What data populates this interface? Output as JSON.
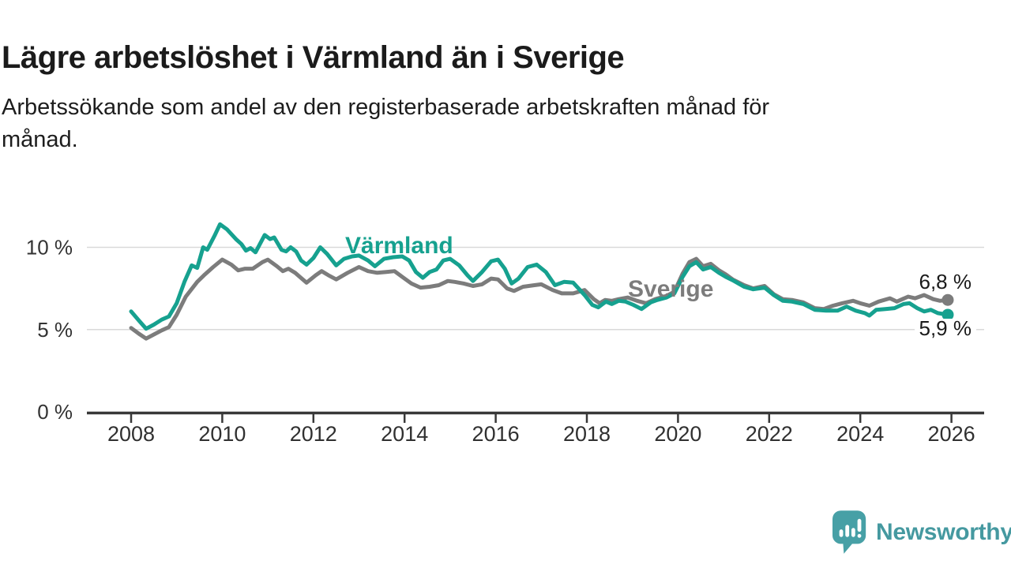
{
  "header": {
    "title": "Lägre arbetslöshet i Värmland än i Sverige",
    "subtitle_lines": [
      "Arbetssökande som andel av den registerbaserade arbetskraften månad för",
      "månad."
    ]
  },
  "chart_data": {
    "type": "line",
    "title": "Lägre arbetslöshet i Värmland än i Sverige",
    "subtitle": "Arbetssökande som andel av den registerbaserade arbetskraften månad för månad.",
    "unit": "%",
    "xlim": [
      2007.8,
      2026.75
    ],
    "ylim": [
      0,
      11.5
    ],
    "grid": "horizontal",
    "legend_position": "inline-labels",
    "x_ticks": [
      2008,
      2010,
      2012,
      2014,
      2016,
      2018,
      2020,
      2022,
      2024,
      2026
    ],
    "y_ticks": [
      {
        "label": "0 %",
        "value": 0
      },
      {
        "label": "5 %",
        "value": 5
      },
      {
        "label": "10 %",
        "value": 10
      }
    ],
    "gridline_values": [
      5,
      10
    ],
    "series": [
      {
        "name": "Värmland",
        "color": "#16a18f",
        "end_label": "5,9 %",
        "end_value": 5.9,
        "points": [
          [
            2008.0,
            6.1
          ],
          [
            2008.17,
            5.55
          ],
          [
            2008.33,
            5.05
          ],
          [
            2008.5,
            5.3
          ],
          [
            2008.67,
            5.6
          ],
          [
            2008.83,
            5.8
          ],
          [
            2009.0,
            6.6
          ],
          [
            2009.17,
            7.9
          ],
          [
            2009.33,
            8.9
          ],
          [
            2009.45,
            8.75
          ],
          [
            2009.58,
            10.0
          ],
          [
            2009.67,
            9.85
          ],
          [
            2009.83,
            10.7
          ],
          [
            2009.95,
            11.4
          ],
          [
            2010.1,
            11.1
          ],
          [
            2010.3,
            10.5
          ],
          [
            2010.42,
            10.2
          ],
          [
            2010.52,
            9.8
          ],
          [
            2010.62,
            9.95
          ],
          [
            2010.73,
            9.7
          ],
          [
            2010.93,
            10.75
          ],
          [
            2011.05,
            10.5
          ],
          [
            2011.14,
            10.6
          ],
          [
            2011.3,
            9.85
          ],
          [
            2011.4,
            9.75
          ],
          [
            2011.5,
            10.0
          ],
          [
            2011.62,
            9.75
          ],
          [
            2011.73,
            9.2
          ],
          [
            2011.85,
            8.95
          ],
          [
            2012.0,
            9.35
          ],
          [
            2012.15,
            10.0
          ],
          [
            2012.3,
            9.6
          ],
          [
            2012.5,
            8.9
          ],
          [
            2012.67,
            9.3
          ],
          [
            2012.85,
            9.45
          ],
          [
            2013.0,
            9.5
          ],
          [
            2013.2,
            9.2
          ],
          [
            2013.35,
            8.85
          ],
          [
            2013.55,
            9.3
          ],
          [
            2013.75,
            9.4
          ],
          [
            2013.95,
            9.45
          ],
          [
            2014.1,
            9.2
          ],
          [
            2014.25,
            8.5
          ],
          [
            2014.4,
            8.15
          ],
          [
            2014.55,
            8.5
          ],
          [
            2014.7,
            8.65
          ],
          [
            2014.85,
            9.2
          ],
          [
            2015.0,
            9.3
          ],
          [
            2015.2,
            8.9
          ],
          [
            2015.38,
            8.3
          ],
          [
            2015.5,
            7.95
          ],
          [
            2015.7,
            8.5
          ],
          [
            2015.9,
            9.15
          ],
          [
            2016.05,
            9.25
          ],
          [
            2016.2,
            8.7
          ],
          [
            2016.35,
            7.8
          ],
          [
            2016.5,
            8.1
          ],
          [
            2016.7,
            8.8
          ],
          [
            2016.9,
            8.95
          ],
          [
            2017.1,
            8.5
          ],
          [
            2017.3,
            7.7
          ],
          [
            2017.5,
            7.9
          ],
          [
            2017.7,
            7.85
          ],
          [
            2017.95,
            7.1
          ],
          [
            2018.12,
            6.5
          ],
          [
            2018.25,
            6.35
          ],
          [
            2018.42,
            6.7
          ],
          [
            2018.55,
            6.55
          ],
          [
            2018.7,
            6.75
          ],
          [
            2018.85,
            6.7
          ],
          [
            2019.02,
            6.5
          ],
          [
            2019.2,
            6.25
          ],
          [
            2019.4,
            6.65
          ],
          [
            2019.55,
            6.8
          ],
          [
            2019.75,
            6.95
          ],
          [
            2019.92,
            7.2
          ],
          [
            2020.1,
            8.2
          ],
          [
            2020.25,
            8.85
          ],
          [
            2020.4,
            9.1
          ],
          [
            2020.55,
            8.65
          ],
          [
            2020.72,
            8.8
          ],
          [
            2020.9,
            8.45
          ],
          [
            2021.05,
            8.2
          ],
          [
            2021.2,
            8.0
          ],
          [
            2021.45,
            7.6
          ],
          [
            2021.65,
            7.45
          ],
          [
            2021.9,
            7.55
          ],
          [
            2022.1,
            7.1
          ],
          [
            2022.3,
            6.75
          ],
          [
            2022.5,
            6.7
          ],
          [
            2022.75,
            6.55
          ],
          [
            2023.0,
            6.2
          ],
          [
            2023.25,
            6.15
          ],
          [
            2023.5,
            6.15
          ],
          [
            2023.7,
            6.4
          ],
          [
            2023.9,
            6.15
          ],
          [
            2024.1,
            6.0
          ],
          [
            2024.2,
            5.85
          ],
          [
            2024.35,
            6.2
          ],
          [
            2024.55,
            6.25
          ],
          [
            2024.75,
            6.3
          ],
          [
            2024.95,
            6.55
          ],
          [
            2025.08,
            6.6
          ],
          [
            2025.25,
            6.3
          ],
          [
            2025.4,
            6.1
          ],
          [
            2025.55,
            6.2
          ],
          [
            2025.7,
            6.0
          ],
          [
            2025.92,
            5.9
          ]
        ]
      },
      {
        "name": "Sverige",
        "color": "#7c7c7c",
        "end_label": "6,8 %",
        "end_value": 6.8,
        "points": [
          [
            2008.0,
            5.1
          ],
          [
            2008.17,
            4.75
          ],
          [
            2008.33,
            4.45
          ],
          [
            2008.5,
            4.7
          ],
          [
            2008.67,
            4.95
          ],
          [
            2008.83,
            5.15
          ],
          [
            2009.0,
            5.9
          ],
          [
            2009.2,
            7.0
          ],
          [
            2009.45,
            7.9
          ],
          [
            2009.6,
            8.3
          ],
          [
            2009.8,
            8.8
          ],
          [
            2010.0,
            9.25
          ],
          [
            2010.2,
            8.95
          ],
          [
            2010.35,
            8.6
          ],
          [
            2010.5,
            8.7
          ],
          [
            2010.67,
            8.7
          ],
          [
            2010.88,
            9.1
          ],
          [
            2011.0,
            9.25
          ],
          [
            2011.2,
            8.85
          ],
          [
            2011.33,
            8.55
          ],
          [
            2011.45,
            8.7
          ],
          [
            2011.6,
            8.45
          ],
          [
            2011.85,
            7.85
          ],
          [
            2012.05,
            8.3
          ],
          [
            2012.18,
            8.55
          ],
          [
            2012.33,
            8.3
          ],
          [
            2012.5,
            8.05
          ],
          [
            2012.75,
            8.45
          ],
          [
            2013.0,
            8.8
          ],
          [
            2013.2,
            8.55
          ],
          [
            2013.4,
            8.45
          ],
          [
            2013.6,
            8.5
          ],
          [
            2013.78,
            8.55
          ],
          [
            2013.95,
            8.2
          ],
          [
            2014.15,
            7.8
          ],
          [
            2014.35,
            7.55
          ],
          [
            2014.55,
            7.6
          ],
          [
            2014.75,
            7.7
          ],
          [
            2014.95,
            7.95
          ],
          [
            2015.1,
            7.9
          ],
          [
            2015.3,
            7.8
          ],
          [
            2015.5,
            7.65
          ],
          [
            2015.7,
            7.75
          ],
          [
            2015.9,
            8.1
          ],
          [
            2016.05,
            8.05
          ],
          [
            2016.25,
            7.5
          ],
          [
            2016.4,
            7.35
          ],
          [
            2016.6,
            7.6
          ],
          [
            2016.85,
            7.7
          ],
          [
            2017.0,
            7.75
          ],
          [
            2017.25,
            7.4
          ],
          [
            2017.45,
            7.2
          ],
          [
            2017.7,
            7.2
          ],
          [
            2017.95,
            7.4
          ],
          [
            2018.15,
            6.85
          ],
          [
            2018.28,
            6.6
          ],
          [
            2018.4,
            6.8
          ],
          [
            2018.55,
            6.75
          ],
          [
            2018.7,
            6.85
          ],
          [
            2018.9,
            6.95
          ],
          [
            2019.1,
            6.75
          ],
          [
            2019.3,
            6.6
          ],
          [
            2019.5,
            6.85
          ],
          [
            2019.75,
            7.05
          ],
          [
            2019.92,
            7.3
          ],
          [
            2020.1,
            8.4
          ],
          [
            2020.25,
            9.1
          ],
          [
            2020.4,
            9.3
          ],
          [
            2020.55,
            8.85
          ],
          [
            2020.72,
            9.0
          ],
          [
            2020.9,
            8.6
          ],
          [
            2021.05,
            8.35
          ],
          [
            2021.2,
            8.05
          ],
          [
            2021.45,
            7.7
          ],
          [
            2021.65,
            7.5
          ],
          [
            2021.9,
            7.65
          ],
          [
            2022.1,
            7.15
          ],
          [
            2022.3,
            6.85
          ],
          [
            2022.5,
            6.8
          ],
          [
            2022.75,
            6.65
          ],
          [
            2023.0,
            6.3
          ],
          [
            2023.2,
            6.25
          ],
          [
            2023.4,
            6.45
          ],
          [
            2023.6,
            6.6
          ],
          [
            2023.84,
            6.75
          ],
          [
            2024.0,
            6.6
          ],
          [
            2024.2,
            6.45
          ],
          [
            2024.4,
            6.7
          ],
          [
            2024.65,
            6.9
          ],
          [
            2024.8,
            6.7
          ],
          [
            2025.05,
            7.0
          ],
          [
            2025.2,
            6.9
          ],
          [
            2025.4,
            7.1
          ],
          [
            2025.6,
            6.85
          ],
          [
            2025.75,
            6.75
          ],
          [
            2025.92,
            6.8
          ]
        ]
      }
    ]
  },
  "branding": {
    "name": "Newsworthy",
    "logo_color": "#47a0a6",
    "text_color": "#4599a0"
  }
}
